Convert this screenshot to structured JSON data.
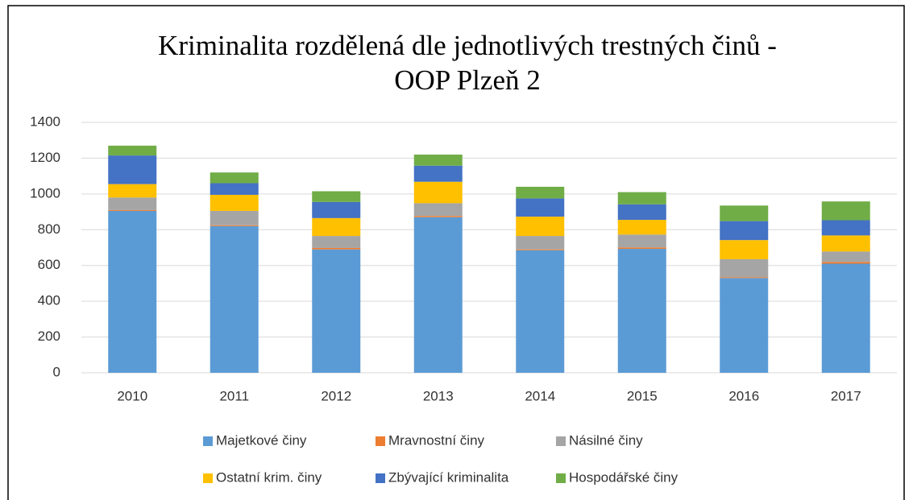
{
  "chart_data": {
    "type": "stacked_bar",
    "title": [
      "Kriminalita rozdělená dle jednotlivých trestných činů -",
      "OOP Plzeň 2"
    ],
    "categories": [
      "2010",
      "2011",
      "2012",
      "2013",
      "2014",
      "2015",
      "2016",
      "2017"
    ],
    "series": [
      {
        "name": "Majetkové činy",
        "color": "#5b9bd5",
        "values": [
          905,
          820,
          690,
          870,
          685,
          693,
          530,
          610
        ]
      },
      {
        "name": "Mravnostní činy",
        "color": "#ed7d31",
        "values": [
          5,
          5,
          8,
          7,
          5,
          8,
          5,
          10
        ]
      },
      {
        "name": "Násilné činy",
        "color": "#a5a5a5",
        "values": [
          70,
          80,
          67,
          71,
          75,
          72,
          100,
          58
        ]
      },
      {
        "name": "Ostatní krim. činy",
        "color": "#ffc000",
        "values": [
          75,
          90,
          100,
          120,
          108,
          82,
          107,
          90
        ]
      },
      {
        "name": "Zbývající kriminalita",
        "color": "#4472c4",
        "values": [
          160,
          65,
          90,
          90,
          102,
          87,
          106,
          85
        ]
      },
      {
        "name": "Hospodářské činy",
        "color": "#70ad47",
        "values": [
          55,
          60,
          60,
          62,
          65,
          68,
          87,
          105
        ]
      }
    ],
    "ylim": [
      0,
      1400
    ],
    "yticks": [
      0,
      200,
      400,
      600,
      800,
      1000,
      1200,
      1400
    ],
    "grid": true
  }
}
